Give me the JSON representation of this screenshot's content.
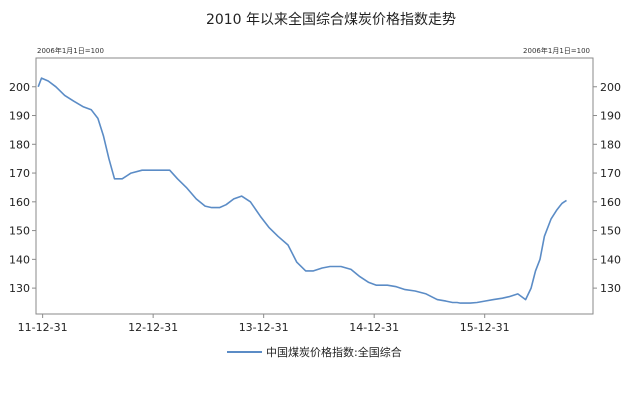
{
  "chart_data": {
    "type": "line",
    "title": "2010 年以来全国综合煤炭价格指数走势",
    "left_axis_note": "2006年1月1日=100",
    "right_axis_note": "2006年1月1日=100",
    "xlabel": "",
    "ylabel": "",
    "ylim": [
      121,
      210
    ],
    "xlim": [
      2011.94,
      2016.98
    ],
    "y_ticks": [
      130,
      140,
      150,
      160,
      170,
      180,
      190,
      200
    ],
    "y_tick_labels": [
      "130",
      "140",
      "150",
      "160",
      "170",
      "180",
      "190",
      "200"
    ],
    "x_ticks": [
      2012.0,
      2013.0,
      2014.0,
      2015.0,
      2016.0
    ],
    "x_tick_labels": [
      "11-12-31",
      "12-12-31",
      "13-12-31",
      "14-12-31",
      "15-12-31"
    ],
    "grid": false,
    "legend_position": "bottom",
    "line_color": "#5b8cc6",
    "series": [
      {
        "name": "中国煤炭价格指数:全国综合",
        "x": [
          2011.96,
          2011.99,
          2012.05,
          2012.12,
          2012.2,
          2012.28,
          2012.37,
          2012.44,
          2012.5,
          2012.55,
          2012.6,
          2012.65,
          2012.72,
          2012.8,
          2012.9,
          2012.97,
          2013.05,
          2013.15,
          2013.22,
          2013.3,
          2013.39,
          2013.47,
          2013.53,
          2013.6,
          2013.66,
          2013.73,
          2013.8,
          2013.88,
          2013.97,
          2014.05,
          2014.13,
          2014.22,
          2014.3,
          2014.38,
          2014.45,
          2014.53,
          2014.6,
          2014.7,
          2014.79,
          2014.87,
          2014.95,
          2015.02,
          2015.12,
          2015.2,
          2015.28,
          2015.37,
          2015.47,
          2015.57,
          2015.65,
          2015.71,
          2015.75,
          2015.78,
          2015.82,
          2015.87,
          2015.93,
          2016.0,
          2016.08,
          2016.16,
          2016.22,
          2016.3,
          2016.37,
          2016.42,
          2016.44,
          2016.46,
          2016.5,
          2016.54,
          2016.6,
          2016.65,
          2016.68,
          2016.7,
          2016.72,
          2016.74
        ],
        "values": [
          200,
          203,
          202,
          200,
          197,
          195,
          193,
          192,
          189,
          183,
          175,
          168,
          168,
          170,
          171,
          171,
          171,
          171,
          168,
          165,
          161,
          158.5,
          158,
          158,
          159,
          161,
          162,
          160,
          155,
          151,
          148,
          145,
          139,
          136,
          136,
          137,
          137.5,
          137.5,
          136.5,
          134,
          132,
          131,
          131,
          130.5,
          129.5,
          129,
          128,
          126,
          125.5,
          125,
          125,
          124.8,
          124.8,
          124.8,
          125,
          125.5,
          126,
          126.5,
          127,
          128,
          126,
          130,
          133,
          136,
          140,
          148,
          154,
          157,
          158.5,
          159.5,
          160,
          160.5
        ]
      }
    ]
  }
}
